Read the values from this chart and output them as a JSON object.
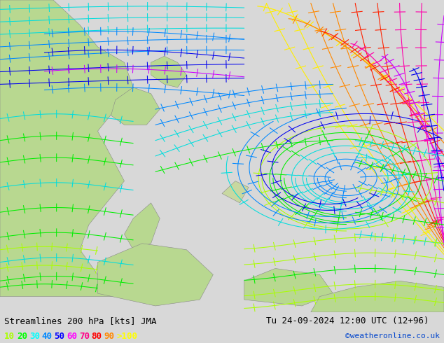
{
  "title_left": "Streamlines 200 hPa [kts] JMA",
  "title_right": "Tu 24-09-2024 12:00 UTC (12+96)",
  "watermark": "©weatheronline.co.uk",
  "legend_values": [
    "10",
    "20",
    "30",
    "40",
    "50",
    "60",
    "70",
    "80",
    "90",
    ">100"
  ],
  "legend_colors": [
    "#aaff00",
    "#00ff00",
    "#00ffff",
    "#0088ff",
    "#0000ff",
    "#ff00ff",
    "#ff0088",
    "#ff0000",
    "#ff8800",
    "#ffff00"
  ],
  "bg_color": "#d8d8d8",
  "ocean_color": "#e0e8f0",
  "land_color": "#b8d890",
  "land_edge": "#888888",
  "title_fontsize": 9,
  "legend_fontsize": 9,
  "figsize": [
    6.34,
    4.9
  ],
  "dpi": 100
}
